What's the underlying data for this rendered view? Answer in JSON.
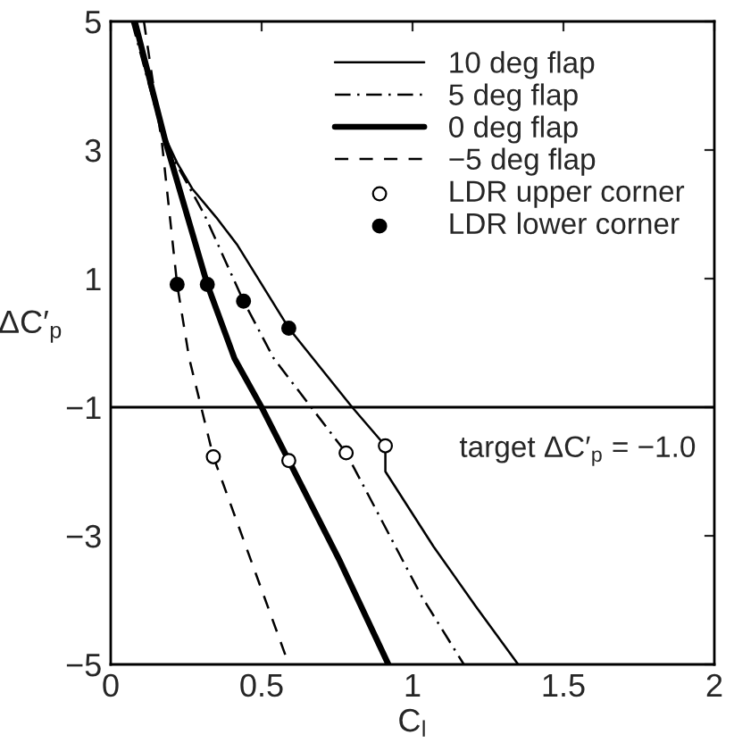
{
  "chart_data": {
    "type": "line",
    "xlabel": "C$_{l}$",
    "ylabel": "ΔC′$_{p}$",
    "xlim": [
      0,
      2
    ],
    "ylim": [
      -5,
      5
    ],
    "xticks": [
      0,
      0.5,
      1,
      1.5,
      2
    ],
    "yticks": [
      {
        "value": -5,
        "label": "−5"
      },
      {
        "value": -3,
        "label": "−3"
      },
      {
        "value": -1,
        "label": "−1"
      },
      1,
      3,
      5
    ],
    "grid": false,
    "legend": "top right",
    "ref_lines": [
      {
        "axis": "y",
        "value": -1,
        "label": "target ΔC′$_{p}$ = −1.0",
        "color": "#000000"
      }
    ],
    "series": [
      {
        "name": "10 deg flap",
        "color": "#000000",
        "line_style": "solid",
        "x": [
          0.08,
          0.18,
          0.22,
          0.27,
          0.35,
          0.42,
          0.59,
          0.8,
          0.91,
          0.91,
          1.07,
          1.21,
          1.35
        ],
        "values": [
          5,
          3.2,
          2.8,
          2.4,
          1.95,
          1.52,
          0.23,
          -1.0,
          -1.6,
          -2.0,
          -3.17,
          -4.1,
          -5
        ]
      },
      {
        "name": "5 deg flap",
        "color": "#000000",
        "line_style": "dashdot",
        "x": [
          0.07,
          0.18,
          0.31,
          0.44,
          0.54,
          0.78,
          1.03,
          1.15,
          1.17
        ],
        "values": [
          5,
          3.1,
          2.0,
          0.65,
          -0.24,
          -1.71,
          -3.94,
          -4.85,
          -5
        ]
      },
      {
        "name": "0 deg flap",
        "color": "#000000",
        "line_style": "solid",
        "x": [
          0.08,
          0.18,
          0.32,
          0.41,
          0.5,
          0.59,
          0.76,
          0.92
        ],
        "values": [
          5,
          3.16,
          0.91,
          -0.24,
          -1.0,
          -1.83,
          -3.4,
          -5
        ]
      },
      {
        "name": "−5 deg flap",
        "color": "#000000",
        "line_style": "dashed",
        "x": [
          0.11,
          0.17,
          0.22,
          0.26,
          0.34,
          0.48,
          0.59
        ],
        "values": [
          5,
          3.1,
          0.91,
          -0.24,
          -1.77,
          -3.58,
          -5
        ]
      },
      {
        "name": "LDR upper corner",
        "type": "scatter",
        "color": "#ffffff",
        "marker": "circle",
        "x": [
          0.34,
          0.59,
          0.78,
          0.91
        ],
        "values": [
          -1.77,
          -1.83,
          -1.71,
          -1.6
        ]
      },
      {
        "name": "LDR lower corner",
        "type": "scatter",
        "color": "#000000",
        "marker": "circle",
        "x": [
          0.22,
          0.32,
          0.44,
          0.59
        ],
        "values": [
          0.91,
          0.91,
          0.65,
          0.23
        ]
      }
    ]
  }
}
